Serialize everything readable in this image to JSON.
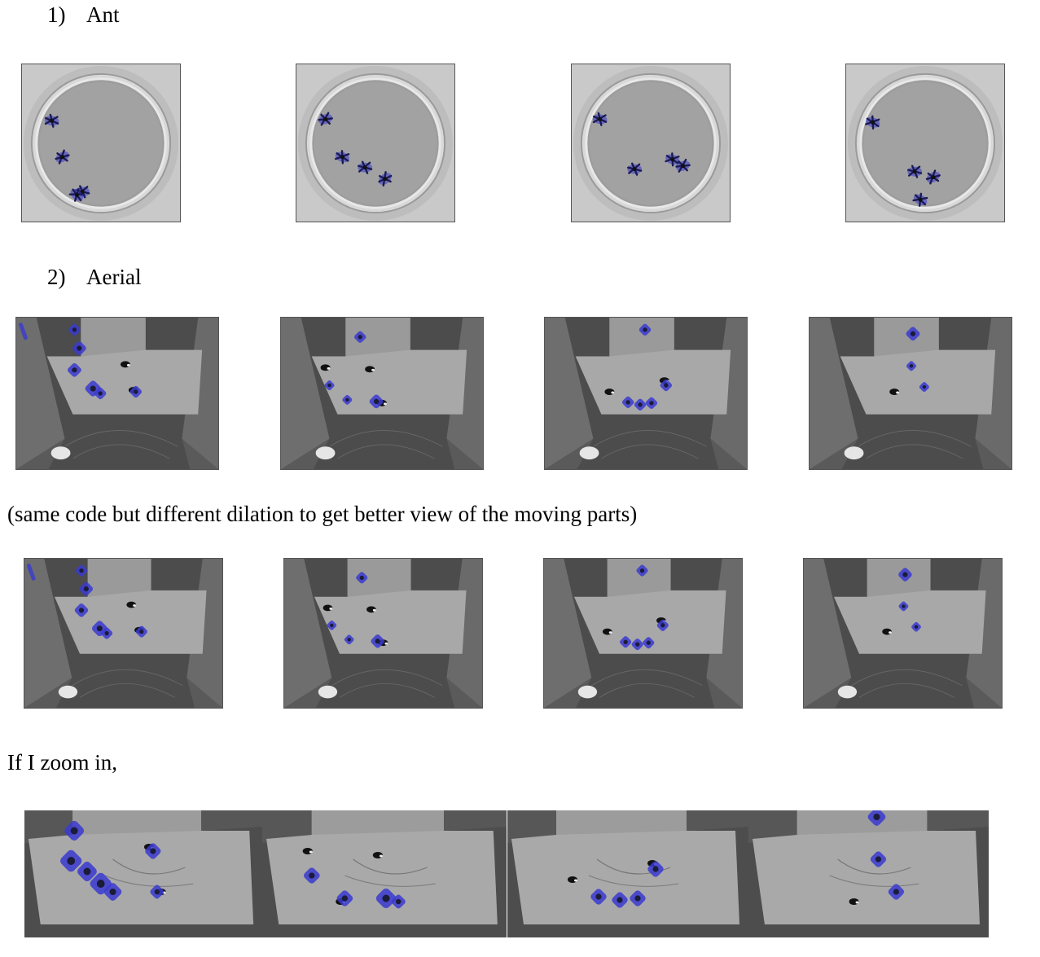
{
  "section1": {
    "number": "1)",
    "title": "Ant"
  },
  "section2": {
    "number": "2)",
    "title": "Aerial"
  },
  "dilation_note": "(same code but different dilation to get better view of the moving parts)",
  "zoom_note": "If I zoom in,",
  "colors": {
    "highlight": "#3a3ad0",
    "page_bg": "#ffffff"
  },
  "figures": {
    "ant_frames": 4,
    "aerial_frames": 4,
    "aerial_dilated_frames": 4,
    "zoomed_frames": 4
  }
}
